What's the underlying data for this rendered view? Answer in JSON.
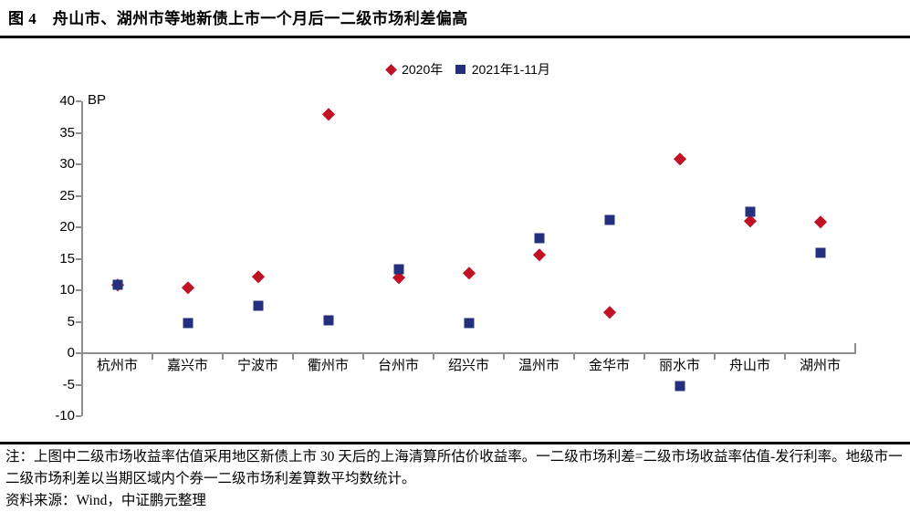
{
  "page": {
    "title": "图 4　舟山市、湖州市等地新债上市一个月后一二级市场利差偏高",
    "note": "注：上图中二级市场收益率估值采用地区新债上市 30 天后的上海清算所估价收益率。一二级市场利差=二级市场收益率估值-发行利率。地级市一二级市场利差以当期区域内个券一二级市场利差算数平均数统计。",
    "source": "资料来源：Wind，中证鹏元整理"
  },
  "chart_data": {
    "type": "scatter",
    "title": "",
    "unit_label": "BP",
    "categories": [
      "杭州市",
      "嘉兴市",
      "宁波市",
      "衢州市",
      "台州市",
      "绍兴市",
      "温州市",
      "金华市",
      "丽水市",
      "舟山市",
      "湖州市"
    ],
    "series": [
      {
        "name": "2020年",
        "marker": "diamond",
        "color": "#C11225",
        "values": [
          10.8,
          10.5,
          12.2,
          37.9,
          12.0,
          12.8,
          15.6,
          6.5,
          30.8,
          21.0,
          20.8
        ]
      },
      {
        "name": "2021年1-11月",
        "marker": "square",
        "color": "#24307E",
        "values": [
          10.8,
          4.8,
          7.5,
          5.2,
          13.3,
          4.8,
          18.2,
          21.2,
          -5.2,
          22.5,
          15.9
        ]
      }
    ],
    "ylim": [
      -10,
      40
    ],
    "ytick_step": 5,
    "grid": false,
    "legend_position": "top-center",
    "axis_color": "#8e8e8e"
  }
}
